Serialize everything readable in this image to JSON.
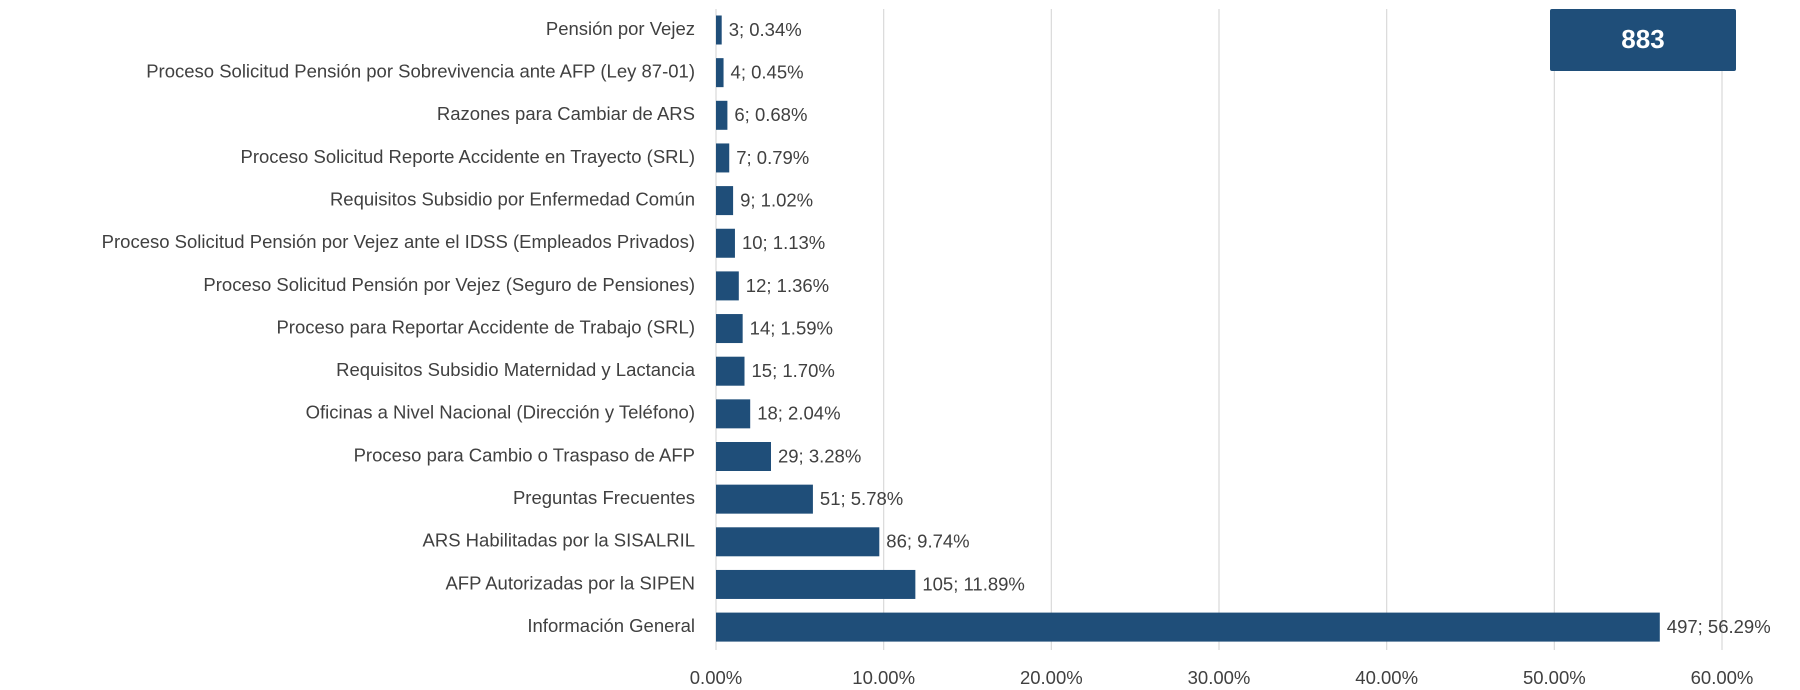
{
  "chart_data": {
    "type": "barh",
    "categories": [
      "Pensión por Vejez",
      "Proceso Solicitud Pensión por Sobrevivencia ante AFP (Ley 87-01)",
      "Razones para Cambiar de ARS",
      "Proceso Solicitud Reporte Accidente en Trayecto (SRL)",
      "Requisitos Subsidio por Enfermedad Común",
      "Proceso Solicitud Pensión por Vejez ante el IDSS (Empleados Privados)",
      "Proceso Solicitud Pensión por Vejez (Seguro de Pensiones)",
      "Proceso para Reportar Accidente de Trabajo (SRL)",
      "Requisitos Subsidio Maternidad y Lactancia",
      "Oficinas a Nivel Nacional (Dirección y Teléfono)",
      "Proceso para Cambio o Traspaso de AFP",
      "Preguntas Frecuentes",
      "ARS Habilitadas por la SISALRIL",
      "AFP Autorizadas por la SIPEN",
      "Información General"
    ],
    "values": [
      0.34,
      0.45,
      0.68,
      0.79,
      1.02,
      1.13,
      1.36,
      1.59,
      1.7,
      2.04,
      3.28,
      5.78,
      9.74,
      11.89,
      56.29
    ],
    "value_labels": [
      "3; 0.34%",
      "4; 0.45%",
      "6; 0.68%",
      "7; 0.79%",
      "9; 1.02%",
      "10; 1.13%",
      "12; 1.36%",
      "14; 1.59%",
      "15; 1.70%",
      "18; 2.04%",
      "29; 3.28%",
      "51; 5.78%",
      "86; 9.74%",
      "105; 11.89%",
      "497; 56.29%"
    ],
    "color": "#1f4e79",
    "xlim": [
      0,
      60
    ],
    "xticks": [
      {
        "value": 0,
        "label": "0.00%"
      },
      {
        "value": 10,
        "label": "10.00%"
      },
      {
        "value": 20,
        "label": "20.00%"
      },
      {
        "value": 30,
        "label": "30.00%"
      },
      {
        "value": 40,
        "label": "40.00%"
      },
      {
        "value": 50,
        "label": "50.00%"
      },
      {
        "value": 60,
        "label": "60.00%"
      }
    ],
    "grid": true,
    "annotation": "883"
  }
}
